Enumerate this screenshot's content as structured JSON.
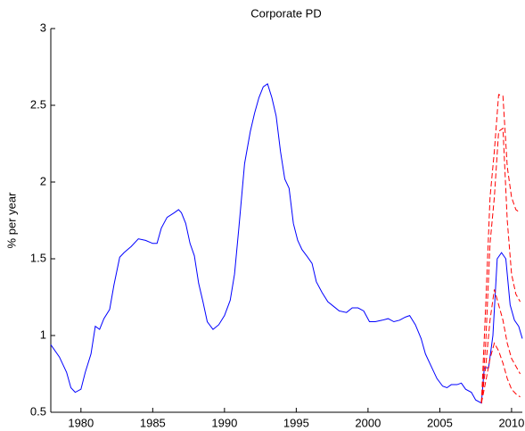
{
  "chart_data": {
    "type": "line",
    "title": "Corporate PD",
    "y_label": "% per year",
    "xlim": [
      1977.9,
      2010.75
    ],
    "ylim": [
      0.5,
      3
    ],
    "xticks": [
      1980,
      1985,
      1990,
      1995,
      2000,
      2005,
      2010
    ],
    "yticks": [
      0.5,
      1,
      1.5,
      2,
      2.5,
      3
    ],
    "series": [
      {
        "color": "#0000ff",
        "dash": "solid",
        "x": [
          1977.9,
          1978.5,
          1979,
          1979.3,
          1979.6,
          1980,
          1980.3,
          1980.7,
          1981,
          1981.3,
          1981.6,
          1982,
          1982.3,
          1982.7,
          1983,
          1983.5,
          1984,
          1984.5,
          1985,
          1985.3,
          1985.6,
          1986,
          1986.5,
          1986.8,
          1987,
          1987.3,
          1987.6,
          1987.9,
          1988.2,
          1988.5,
          1988.8,
          1989.2,
          1989.6,
          1990,
          1990.4,
          1990.7,
          1991,
          1991.4,
          1991.8,
          1992.1,
          1992.4,
          1992.7,
          1993,
          1993.3,
          1993.6,
          1993.9,
          1994.2,
          1994.5,
          1994.8,
          1995.1,
          1995.4,
          1995.8,
          1996.1,
          1996.4,
          1996.8,
          1997.2,
          1997.6,
          1998,
          1998.5,
          1998.9,
          1999.3,
          1999.7,
          2000.1,
          2000.5,
          2001,
          2001.4,
          2001.8,
          2002.2,
          2002.6,
          2002.9,
          2003.3,
          2003.7,
          2004,
          2004.4,
          2004.8,
          2005.2,
          2005.5,
          2005.8,
          2006.2,
          2006.5,
          2006.8,
          2007.2,
          2007.5,
          2007.9,
          2008.1,
          2008.4,
          2008.7,
          2009,
          2009.3,
          2009.6,
          2009.9,
          2010.2,
          2010.5,
          2010.75
        ],
        "values": [
          0.94,
          0.86,
          0.76,
          0.66,
          0.63,
          0.65,
          0.76,
          0.88,
          1.06,
          1.04,
          1.11,
          1.17,
          1.33,
          1.51,
          1.54,
          1.58,
          1.63,
          1.62,
          1.6,
          1.6,
          1.7,
          1.77,
          1.8,
          1.82,
          1.8,
          1.73,
          1.6,
          1.52,
          1.34,
          1.22,
          1.09,
          1.04,
          1.07,
          1.13,
          1.23,
          1.4,
          1.7,
          2.12,
          2.33,
          2.45,
          2.55,
          2.62,
          2.64,
          2.55,
          2.43,
          2.2,
          2.02,
          1.96,
          1.73,
          1.62,
          1.56,
          1.51,
          1.47,
          1.35,
          1.28,
          1.22,
          1.19,
          1.16,
          1.15,
          1.18,
          1.18,
          1.16,
          1.09,
          1.09,
          1.1,
          1.11,
          1.09,
          1.1,
          1.12,
          1.13,
          1.07,
          0.98,
          0.88,
          0.8,
          0.72,
          0.67,
          0.66,
          0.68,
          0.68,
          0.69,
          0.65,
          0.63,
          0.58,
          0.56,
          0.79,
          0.79,
          1.0,
          1.5,
          1.54,
          1.5,
          1.2,
          1.1,
          1.06,
          0.98
        ]
      },
      {
        "color": "#ff0000",
        "dash": "dashed",
        "x": [
          2007.9,
          2008.2,
          2008.5,
          2008.8,
          2009.1,
          2009.4,
          2009.7,
          2010,
          2010.3,
          2010.6
        ],
        "values": [
          0.56,
          1.2,
          1.9,
          2.2,
          2.57,
          2.56,
          2.1,
          1.9,
          1.82,
          1.8
        ]
      },
      {
        "color": "#ff0000",
        "dash": "dashed",
        "x": [
          2007.9,
          2008.2,
          2008.5,
          2008.8,
          2009.1,
          2009.4,
          2009.7,
          2010,
          2010.3,
          2010.6
        ],
        "values": [
          0.56,
          0.95,
          1.6,
          1.9,
          2.33,
          2.35,
          1.75,
          1.4,
          1.27,
          1.22
        ]
      },
      {
        "color": "#ff0000",
        "dash": "dashed",
        "x": [
          2007.9,
          2008.2,
          2008.5,
          2008.8,
          2009.1,
          2009.4,
          2009.7,
          2010,
          2010.3,
          2010.6
        ],
        "values": [
          0.56,
          0.8,
          1.1,
          1.3,
          1.2,
          1.1,
          0.95,
          0.85,
          0.8,
          0.75
        ]
      },
      {
        "color": "#ff0000",
        "dash": "dashed",
        "x": [
          2007.9,
          2008.2,
          2008.5,
          2008.8,
          2009.1,
          2009.4,
          2009.7,
          2010,
          2010.3,
          2010.6
        ],
        "values": [
          0.56,
          0.7,
          0.85,
          0.95,
          0.9,
          0.82,
          0.72,
          0.65,
          0.62,
          0.6
        ]
      }
    ]
  }
}
